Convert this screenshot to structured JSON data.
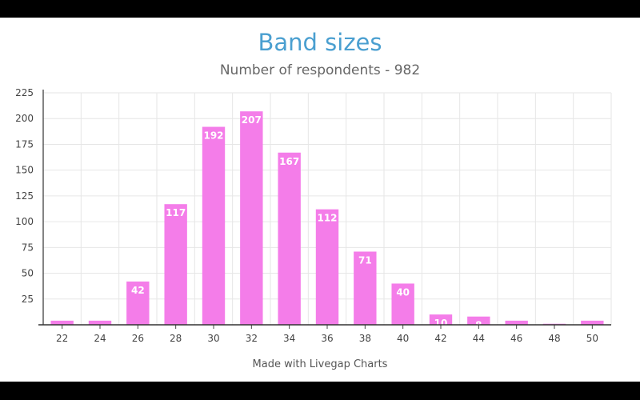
{
  "chart_data": {
    "type": "bar",
    "title": "Band sizes",
    "subtitle": "Number of respondents - 982",
    "xlabel": "",
    "ylabel": "",
    "categories": [
      "22",
      "24",
      "26",
      "28",
      "30",
      "32",
      "34",
      "36",
      "38",
      "40",
      "42",
      "44",
      "46",
      "48",
      "50"
    ],
    "values": [
      4,
      4,
      42,
      117,
      192,
      207,
      167,
      112,
      71,
      40,
      10,
      8,
      4,
      1,
      4
    ],
    "data_labels": [
      "",
      "",
      "42",
      "117",
      "192",
      "207",
      "167",
      "112",
      "71",
      "40",
      "10",
      "8",
      "",
      "",
      ""
    ],
    "yticks": [
      25,
      50,
      75,
      100,
      125,
      150,
      175,
      200,
      225
    ],
    "ylim": [
      0,
      225
    ],
    "grid": true,
    "bar_color": "#f47de9",
    "footer": "Made with Livegap Charts"
  }
}
